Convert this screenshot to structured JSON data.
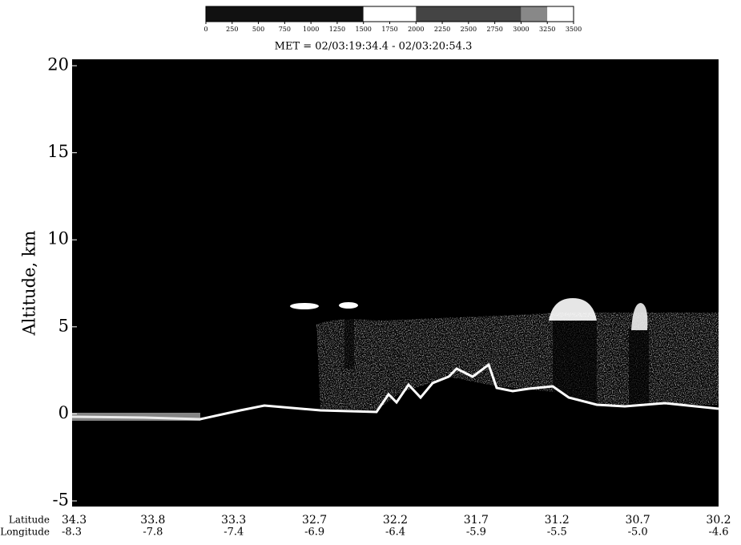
{
  "chart_data": {
    "type": "image",
    "title": "MET = 02/03:19:34.4 - 02/03:20:54.3",
    "y_label": "Altitude, km",
    "ylim": [
      -5,
      20
    ],
    "yticks": [
      -5,
      0,
      5,
      10,
      15,
      20
    ],
    "x_rows": [
      {
        "name": "Latitude",
        "labels": [
          "34.3",
          "33.8",
          "33.3",
          "32.7",
          "32.2",
          "31.7",
          "31.2",
          "30.7",
          "30.2"
        ]
      },
      {
        "name": "Longitude",
        "labels": [
          "-8.3",
          "-7.8",
          "-7.4",
          "-6.9",
          "-6.4",
          "-5.9",
          "-5.5",
          "-5.0",
          "-4.6"
        ]
      }
    ],
    "colorbar": {
      "lim": [
        0,
        3500
      ],
      "ticks": [
        0,
        250,
        500,
        750,
        1000,
        1250,
        1500,
        1750,
        2000,
        2250,
        2500,
        2750,
        3000,
        3250,
        3500
      ],
      "segments": [
        {
          "from": 0,
          "to": 1500,
          "color": "#111111"
        },
        {
          "from": 1500,
          "to": 2000,
          "color": "#ffffff"
        },
        {
          "from": 2000,
          "to": 3000,
          "color": "#444444"
        },
        {
          "from": 3000,
          "to": 3250,
          "color": "#888888"
        },
        {
          "from": 3250,
          "to": 3500,
          "color": "#ffffff"
        }
      ]
    }
  }
}
